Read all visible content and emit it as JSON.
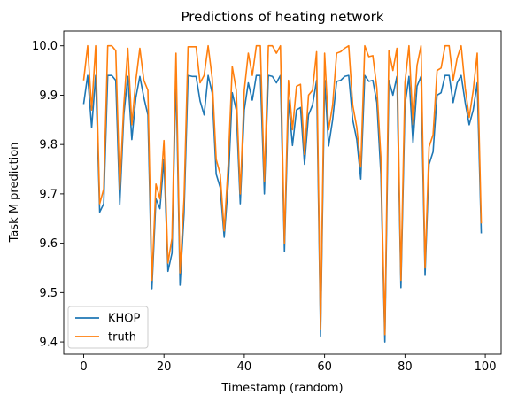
{
  "chart_data": {
    "type": "line",
    "title": "Predictions of heating network",
    "xlabel": "Timestamp (random)",
    "ylabel": "Task M prediction",
    "xlim": [
      -4.95,
      103.95
    ],
    "ylim": [
      9.375,
      10.03
    ],
    "xticks": [
      0,
      20,
      40,
      60,
      80,
      100
    ],
    "yticks": [
      9.4,
      9.5,
      9.6,
      9.7,
      9.8,
      9.9,
      10.0
    ],
    "ytick_labels": [
      "9.4",
      "9.5",
      "9.6",
      "9.7",
      "9.8",
      "9.9",
      "10.0"
    ],
    "grid": false,
    "legend_position": "lower left",
    "x": [
      0,
      1,
      2,
      3,
      4,
      5,
      6,
      7,
      8,
      9,
      10,
      11,
      12,
      13,
      14,
      15,
      16,
      17,
      18,
      19,
      20,
      21,
      22,
      23,
      24,
      25,
      26,
      27,
      28,
      29,
      30,
      31,
      32,
      33,
      34,
      35,
      36,
      37,
      38,
      39,
      40,
      41,
      42,
      43,
      44,
      45,
      46,
      47,
      48,
      49,
      50,
      51,
      52,
      53,
      54,
      55,
      56,
      57,
      58,
      59,
      60,
      61,
      62,
      63,
      64,
      65,
      66,
      67,
      68,
      69,
      70,
      71,
      72,
      73,
      74,
      75,
      76,
      77,
      78,
      79,
      80,
      81,
      82,
      83,
      84,
      85,
      86,
      87,
      88,
      89,
      90,
      91,
      92,
      93,
      94,
      95,
      96,
      97,
      98,
      99
    ],
    "series": [
      {
        "name": "KHOP",
        "color": "#1f77b4",
        "values": [
          9.882,
          9.94,
          9.834,
          9.94,
          9.663,
          9.68,
          9.94,
          9.94,
          9.93,
          9.678,
          9.86,
          9.938,
          9.81,
          9.895,
          9.938,
          9.895,
          9.86,
          9.508,
          9.69,
          9.67,
          9.77,
          9.543,
          9.58,
          9.94,
          9.515,
          9.66,
          9.94,
          9.938,
          9.938,
          9.888,
          9.86,
          9.94,
          9.905,
          9.74,
          9.713,
          9.612,
          9.72,
          9.905,
          9.87,
          9.68,
          9.87,
          9.925,
          9.89,
          9.94,
          9.94,
          9.7,
          9.94,
          9.938,
          9.925,
          9.94,
          9.583,
          9.89,
          9.798,
          9.87,
          9.875,
          9.76,
          9.86,
          9.88,
          9.93,
          9.412,
          9.93,
          9.797,
          9.85,
          9.928,
          9.93,
          9.938,
          9.94,
          9.85,
          9.81,
          9.73,
          9.94,
          9.928,
          9.93,
          9.885,
          9.74,
          9.4,
          9.93,
          9.9,
          9.938,
          9.51,
          9.88,
          9.938,
          9.803,
          9.918,
          9.938,
          9.535,
          9.76,
          9.785,
          9.9,
          9.905,
          9.94,
          9.94,
          9.885,
          9.925,
          9.94,
          9.885,
          9.84,
          9.87,
          9.925,
          9.62
        ]
      },
      {
        "name": "truth",
        "color": "#ff7f0e",
        "values": [
          9.93,
          10.0,
          9.87,
          10.0,
          9.68,
          9.71,
          10.0,
          10.0,
          9.99,
          9.71,
          9.88,
          9.995,
          9.84,
          9.93,
          9.995,
          9.93,
          9.91,
          9.525,
          9.72,
          9.69,
          9.808,
          9.56,
          9.61,
          9.985,
          9.54,
          9.69,
          9.998,
          9.998,
          9.998,
          9.925,
          9.94,
          10.0,
          9.935,
          9.77,
          9.74,
          9.625,
          9.76,
          9.958,
          9.91,
          9.7,
          9.91,
          9.985,
          9.94,
          10.0,
          10.0,
          9.725,
          10.0,
          10.0,
          9.985,
          10.0,
          9.6,
          9.93,
          9.83,
          9.918,
          9.922,
          9.78,
          9.9,
          9.91,
          9.988,
          9.425,
          9.985,
          9.83,
          9.88,
          9.985,
          9.988,
          9.995,
          10.0,
          9.88,
          9.835,
          9.755,
          10.0,
          9.978,
          9.98,
          9.915,
          9.775,
          9.415,
          9.99,
          9.95,
          9.995,
          9.525,
          9.925,
          10.0,
          9.84,
          9.96,
          10.0,
          9.55,
          9.795,
          9.82,
          9.95,
          9.955,
          10.0,
          10.0,
          9.93,
          9.975,
          10.0,
          9.915,
          9.855,
          9.91,
          9.985,
          9.64
        ]
      }
    ]
  }
}
